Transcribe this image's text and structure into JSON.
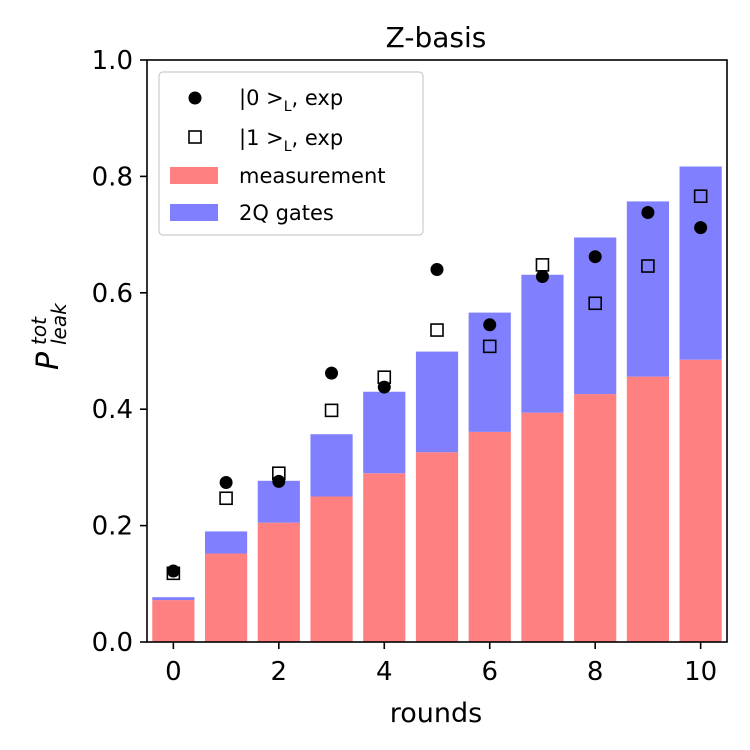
{
  "chart_data": {
    "type": "bar",
    "title": "Z-basis",
    "xlabel": "rounds",
    "ylabel": {
      "main": "P",
      "sup": "tot",
      "sub": "leak"
    },
    "xlim": [
      -0.5,
      10.5
    ],
    "ylim": [
      0,
      1.0
    ],
    "xticks": [
      0,
      2,
      4,
      6,
      8,
      10
    ],
    "xtick_labels": [
      "0",
      "2",
      "4",
      "6",
      "8",
      "10"
    ],
    "yticks": [
      0.0,
      0.2,
      0.4,
      0.6,
      0.8,
      1.0
    ],
    "ytick_labels": [
      "0.0",
      "0.2",
      "0.4",
      "0.6",
      "0.8",
      "1.0"
    ],
    "x": [
      0,
      1,
      2,
      3,
      4,
      5,
      6,
      7,
      8,
      9,
      10
    ],
    "stacked_bars": [
      {
        "name": "measurement",
        "color": "#ff8080",
        "values": [
          0.072,
          0.152,
          0.205,
          0.25,
          0.29,
          0.326,
          0.361,
          0.394,
          0.426,
          0.456,
          0.485
        ]
      },
      {
        "name": "2Q gates",
        "color": "#8080ff",
        "values": [
          0.005,
          0.038,
          0.072,
          0.107,
          0.14,
          0.173,
          0.205,
          0.237,
          0.269,
          0.301,
          0.332
        ]
      }
    ],
    "scatter": [
      {
        "name": "|0 >_L, exp",
        "marker": "circle",
        "values": [
          0.122,
          0.274,
          0.276,
          0.462,
          0.438,
          0.64,
          0.545,
          0.628,
          0.662,
          0.738,
          0.712
        ]
      },
      {
        "name": "|1 >_L, exp",
        "marker": "square",
        "values": [
          0.118,
          0.247,
          0.29,
          0.398,
          0.455,
          0.536,
          0.508,
          0.648,
          0.582,
          0.646,
          0.766
        ]
      }
    ],
    "legend": {
      "position": "upper-left",
      "entries": [
        {
          "ket": "|0 >",
          "sub": "L",
          "suffix": ", exp",
          "marker": "circle"
        },
        {
          "ket": "|1 >",
          "sub": "L",
          "suffix": ", exp",
          "marker": "square"
        },
        {
          "text": "measurement",
          "marker": "patch",
          "color": "#ff8080"
        },
        {
          "text": "2Q gates",
          "marker": "patch",
          "color": "#8080ff"
        }
      ]
    }
  }
}
